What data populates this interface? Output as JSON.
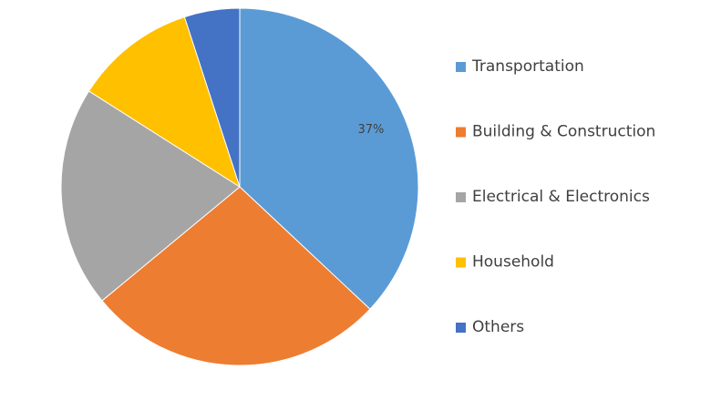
{
  "chart_data": {
    "type": "pie",
    "categories": [
      "Transportation",
      "Building & Construction",
      "Electrical & Electronics",
      "Household",
      "Others"
    ],
    "values": [
      37,
      27,
      20,
      11,
      5
    ],
    "value_labels": [
      "37%",
      null,
      null,
      null,
      null
    ],
    "colors": [
      "#5b9bd5",
      "#ed7d31",
      "#a5a5a5",
      "#ffc000",
      "#4472c4"
    ],
    "legend": "right"
  }
}
